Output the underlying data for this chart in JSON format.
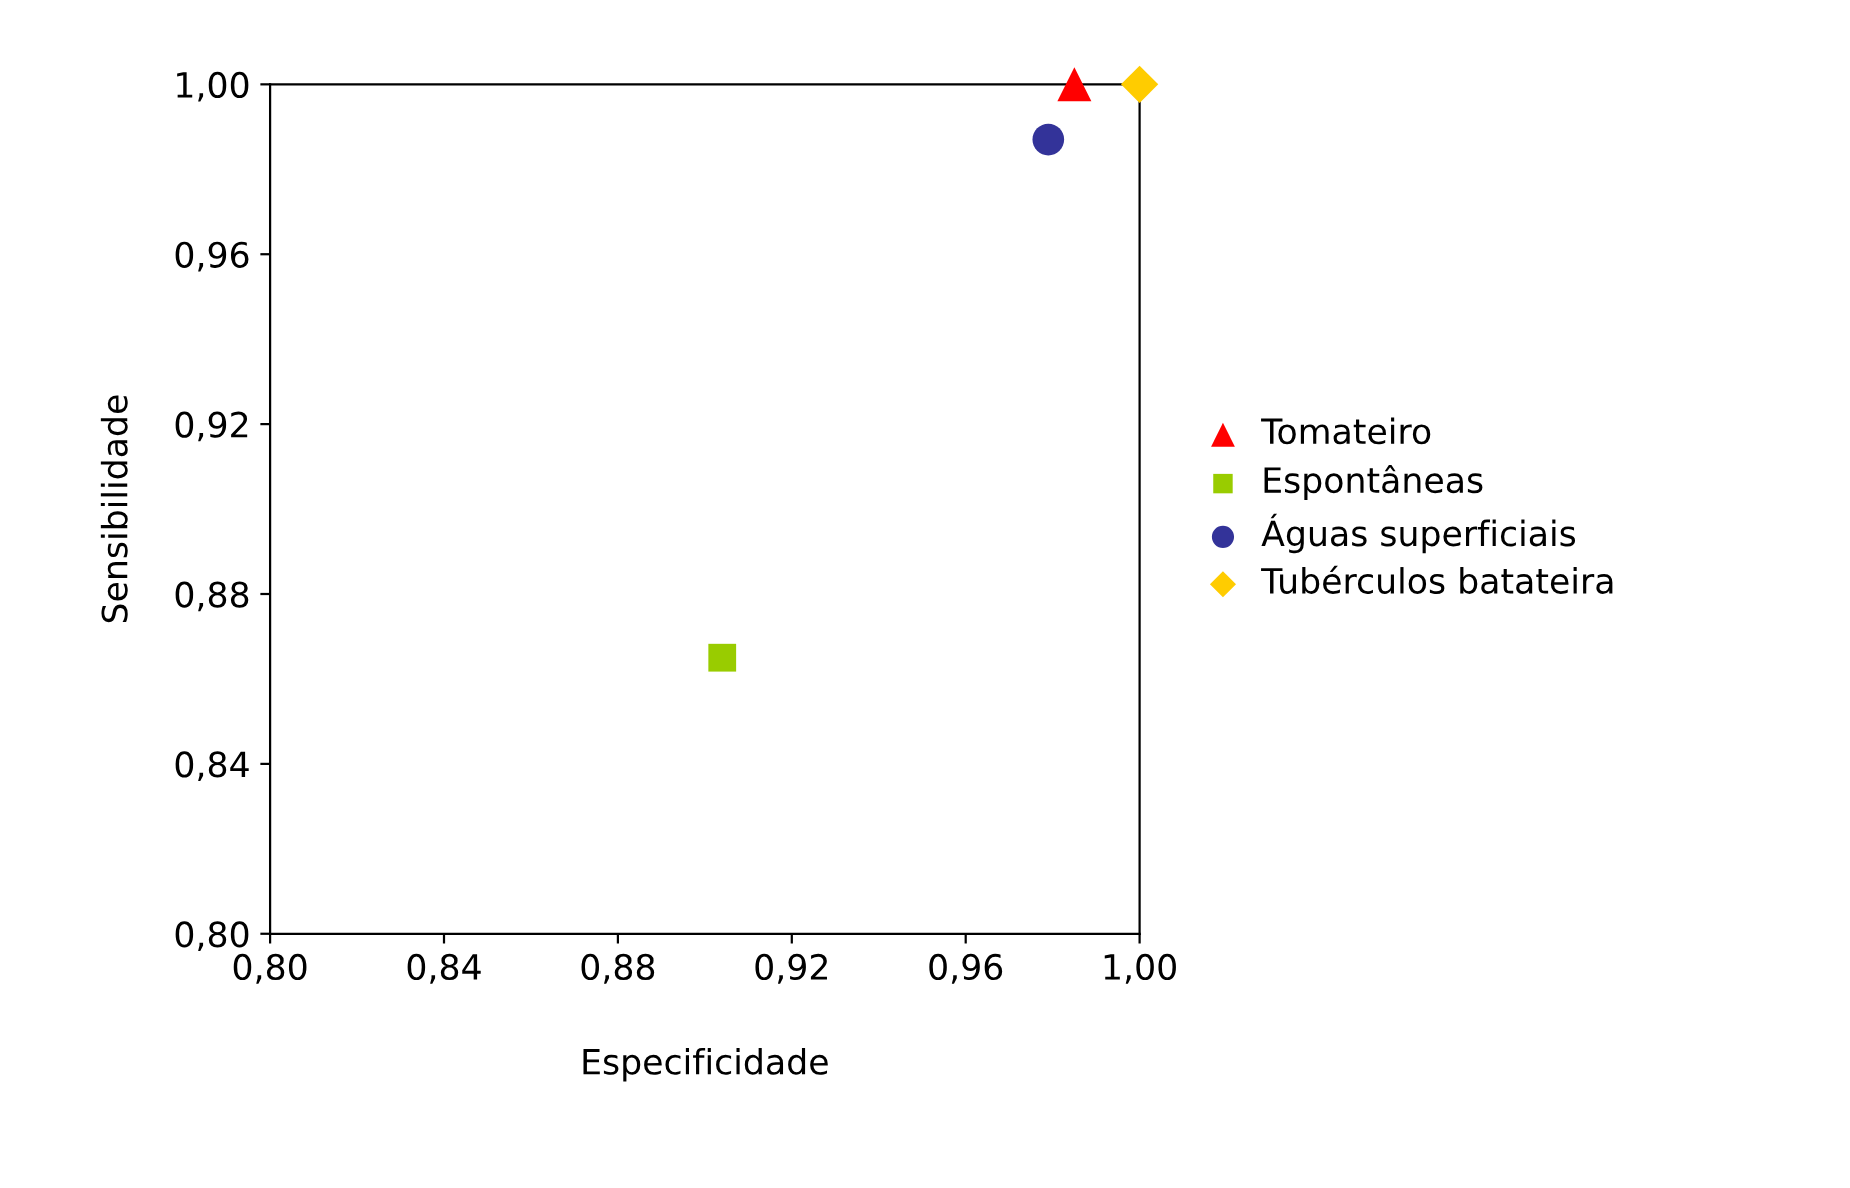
{
  "chart_data": {
    "type": "scatter",
    "xlabel": "Especificidade",
    "ylabel": "Sensibilidade",
    "xlim": [
      0.8,
      1.0
    ],
    "ylim": [
      0.8,
      1.0
    ],
    "xticks": [
      {
        "value": 0.8,
        "label": "0,80"
      },
      {
        "value": 0.84,
        "label": "0,84"
      },
      {
        "value": 0.88,
        "label": "0,88"
      },
      {
        "value": 0.92,
        "label": "0,92"
      },
      {
        "value": 0.96,
        "label": "0,96"
      },
      {
        "value": 1.0,
        "label": "1,00"
      }
    ],
    "yticks": [
      {
        "value": 0.8,
        "label": "0,80"
      },
      {
        "value": 0.84,
        "label": "0,84"
      },
      {
        "value": 0.88,
        "label": "0,88"
      },
      {
        "value": 0.92,
        "label": "0,92"
      },
      {
        "value": 0.96,
        "label": "0,96"
      },
      {
        "value": 1.0,
        "label": "1,00"
      }
    ],
    "grid": false,
    "legend": "right",
    "series": [
      {
        "name": "Tomateiro",
        "color": "#ff0000",
        "marker": "triangle",
        "x": [
          0.985
        ],
        "values": [
          1.0
        ]
      },
      {
        "name": "Espontâneas",
        "color": "#99cc00",
        "marker": "square",
        "x": [
          0.904
        ],
        "values": [
          0.865
        ]
      },
      {
        "name": "Águas superficiais",
        "color": "#333399",
        "marker": "circle",
        "x": [
          0.979
        ],
        "values": [
          0.987
        ]
      },
      {
        "name": "Tubérculos batateira",
        "color": "#ffcc00",
        "marker": "diamond",
        "x": [
          1.0
        ],
        "values": [
          1.0
        ]
      }
    ]
  }
}
